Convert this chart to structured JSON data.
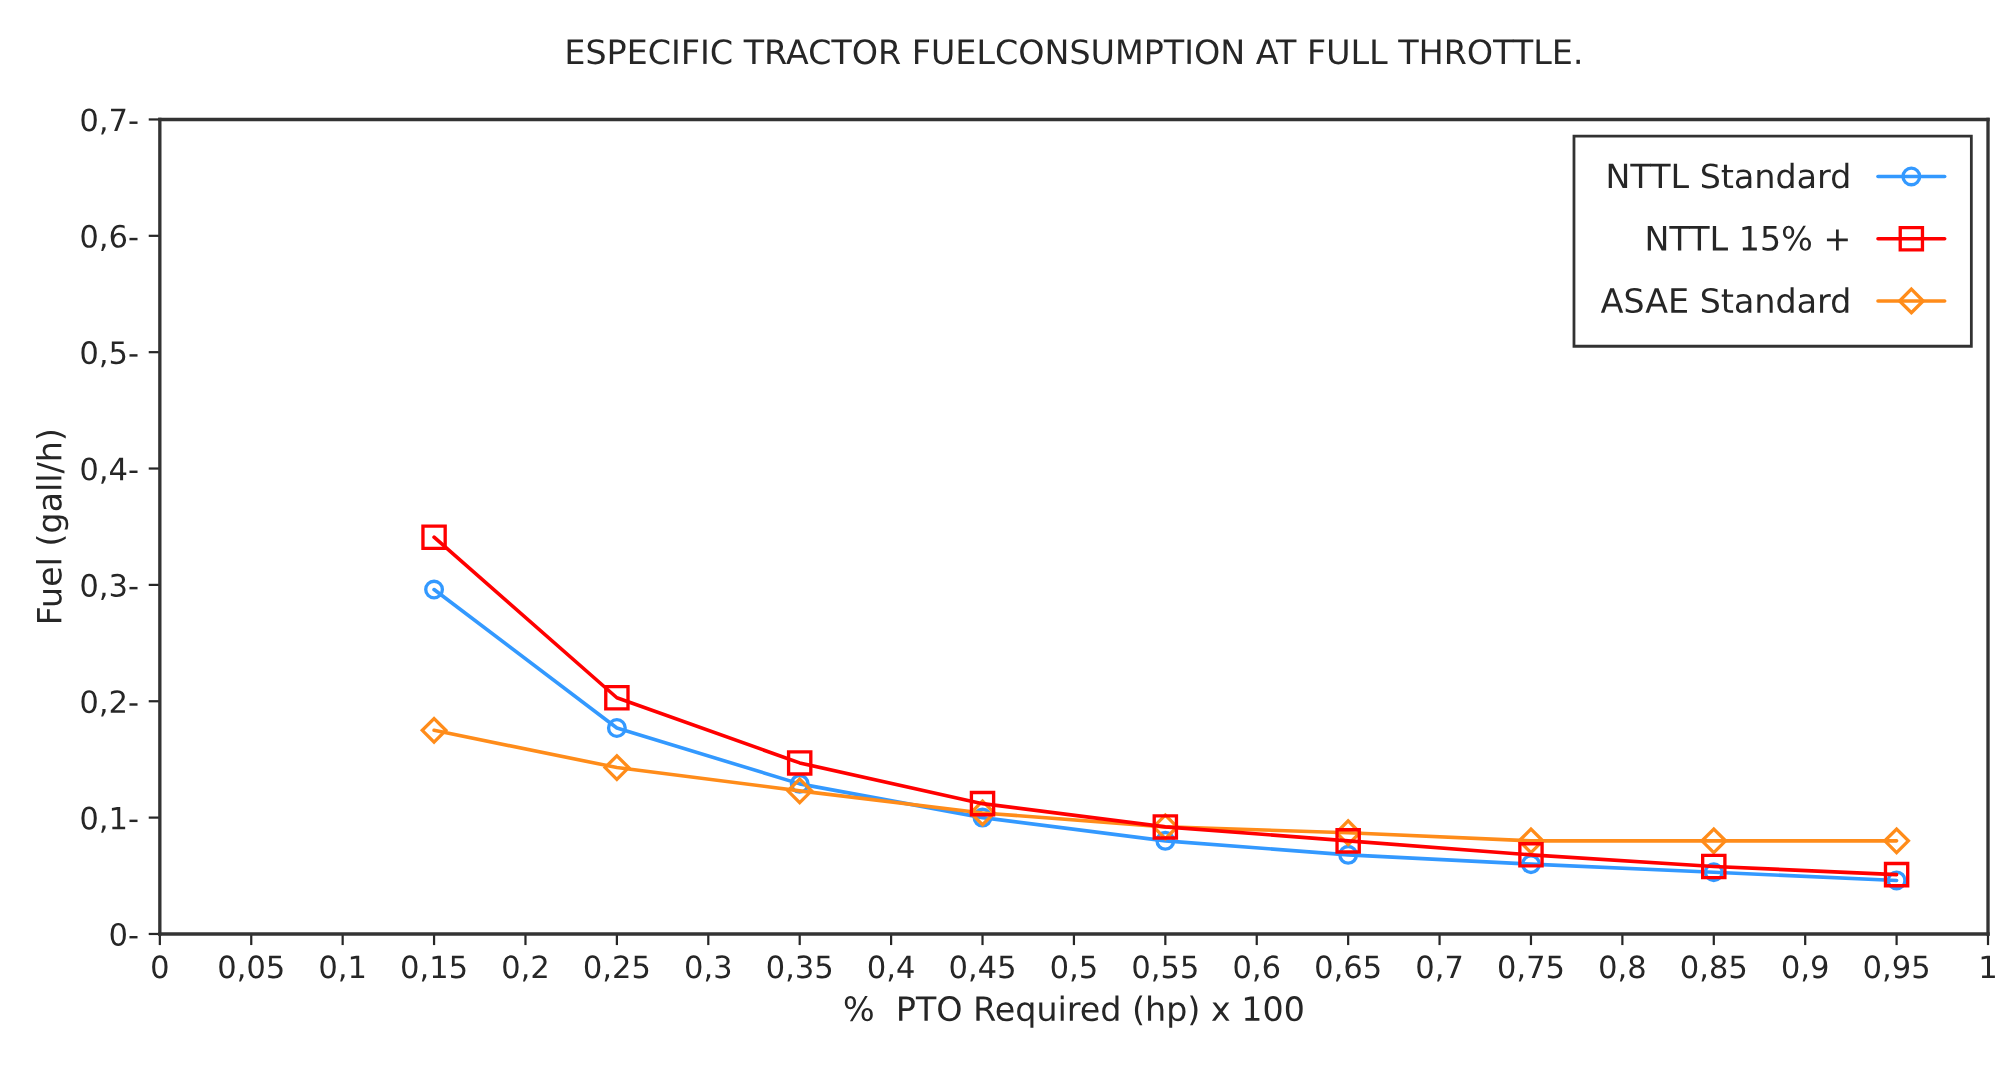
{
  "chart_data": {
    "type": "line",
    "title": "ESPECIFIC TRACTOR FUELCONSUMPTION AT FULL THROTTLE.",
    "xlabel": "%  PTO Required (hp) x 100",
    "ylabel": "Fuel (gall/h)",
    "x": [
      0.15,
      0.25,
      0.35,
      0.45,
      0.55,
      0.65,
      0.75,
      0.85,
      0.95
    ],
    "series": [
      {
        "name": "NTTL Standard",
        "color": "#3399ff",
        "marker": "circle",
        "values": [
          0.296,
          0.177,
          0.129,
          0.1,
          0.08,
          0.068,
          0.06,
          0.053,
          0.046
        ]
      },
      {
        "name": "NTTL 15% +",
        "color": "#ff0000",
        "marker": "square",
        "values": [
          0.341,
          0.203,
          0.147,
          0.112,
          0.092,
          0.08,
          0.068,
          0.058,
          0.051
        ]
      },
      {
        "name": "ASAE Standard",
        "color": "#ff8c1a",
        "marker": "diamond",
        "values": [
          0.175,
          0.143,
          0.123,
          0.104,
          0.092,
          0.087,
          0.08,
          0.08,
          0.08
        ]
      }
    ],
    "xlim": [
      0,
      1
    ],
    "xticks": [
      0,
      {
        "value": 0.05,
        "label": "0,05"
      },
      {
        "value": 0.1,
        "label": "0,1"
      },
      {
        "value": 0.15,
        "label": "0,15"
      },
      {
        "value": 0.2,
        "label": "0,2"
      },
      {
        "value": 0.25,
        "label": "0,25"
      },
      {
        "value": 0.3,
        "label": "0,3"
      },
      {
        "value": 0.35,
        "label": "0,35"
      },
      {
        "value": 0.4,
        "label": "0,4"
      },
      {
        "value": 0.45,
        "label": "0,45"
      },
      {
        "value": 0.5,
        "label": "0,5"
      },
      {
        "value": 0.55,
        "label": "0,55"
      },
      {
        "value": 0.6,
        "label": "0,6"
      },
      {
        "value": 0.65,
        "label": "0,65"
      },
      {
        "value": 0.7,
        "label": "0,7"
      },
      {
        "value": 0.75,
        "label": "0,75"
      },
      {
        "value": 0.8,
        "label": "0,8"
      },
      {
        "value": 0.85,
        "label": "0,85"
      },
      {
        "value": 0.9,
        "label": "0,9"
      },
      {
        "value": 0.95,
        "label": "0,95"
      },
      1
    ],
    "ylim": [
      0,
      0.7
    ],
    "yticks": [
      {
        "value": 0,
        "label": "0-"
      },
      {
        "value": 0.1,
        "label": "0,1-"
      },
      {
        "value": 0.2,
        "label": "0,2-"
      },
      {
        "value": 0.3,
        "label": "0,3-"
      },
      {
        "value": 0.4,
        "label": "0,4-"
      },
      {
        "value": 0.5,
        "label": "0,5-"
      },
      {
        "value": 0.6,
        "label": "0,6-"
      },
      {
        "value": 0.7,
        "label": "0,7-"
      }
    ],
    "grid": false,
    "legend": "top right",
    "line_style": "solid"
  }
}
